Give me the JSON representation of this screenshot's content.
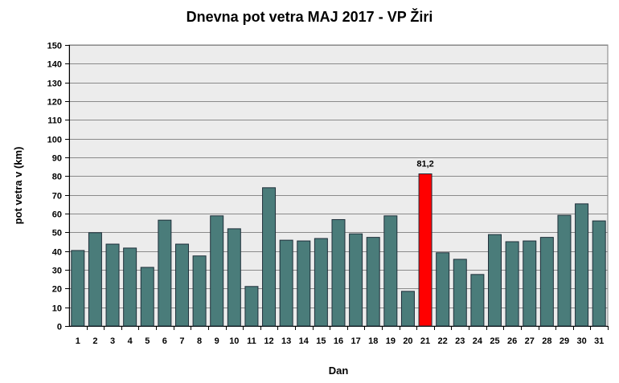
{
  "chart_data": {
    "type": "bar",
    "title": "Dnevna pot vetra MAJ 2017 - VP Žiri",
    "xlabel": "Dan",
    "ylabel": "pot vetra  v (km)",
    "ylim": [
      0,
      150
    ],
    "ytick_step": 10,
    "grid": true,
    "categories": [
      "1",
      "2",
      "3",
      "4",
      "5",
      "6",
      "7",
      "8",
      "9",
      "10",
      "11",
      "12",
      "13",
      "14",
      "15",
      "16",
      "17",
      "18",
      "19",
      "20",
      "21",
      "22",
      "23",
      "24",
      "25",
      "26",
      "27",
      "28",
      "29",
      "30",
      "31"
    ],
    "values": [
      40.3,
      49.8,
      43.7,
      41.6,
      31.3,
      56.5,
      43.7,
      37.4,
      58.8,
      51.9,
      21.1,
      73.8,
      45.8,
      45.4,
      46.7,
      56.8,
      49.2,
      47.3,
      58.8,
      18.5,
      81.2,
      39.1,
      35.6,
      27.5,
      48.8,
      45.0,
      45.4,
      47.3,
      59.1,
      65.2,
      56.1
    ],
    "highlight_index": 20,
    "highlight_label": "81,2",
    "colors": {
      "bar": "#4a7c7a",
      "bar_stroke": "#1f2f3a",
      "highlight": "#ff0000",
      "plot_bg": "#ececec",
      "grid": "#8a8a8a"
    }
  }
}
